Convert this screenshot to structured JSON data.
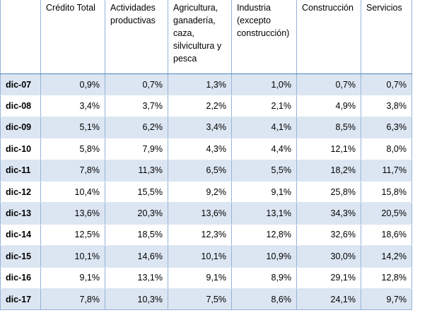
{
  "table": {
    "columns": [
      "Crédito Total",
      "Actividades productivas",
      "Agricultura, ganadería, caza, silvicultura y pesca",
      "Industria (excepto construcción)",
      "Construcción",
      "Servicios"
    ],
    "rows": [
      {
        "label": "dic-07",
        "values": [
          "0,9%",
          "0,7%",
          "1,3%",
          "1,0%",
          "0,7%",
          "0,7%"
        ]
      },
      {
        "label": "dic-08",
        "values": [
          "3,4%",
          "3,7%",
          "2,2%",
          "2,1%",
          "4,9%",
          "3,8%"
        ]
      },
      {
        "label": "dic-09",
        "values": [
          "5,1%",
          "6,2%",
          "3,4%",
          "4,1%",
          "8,5%",
          "6,3%"
        ]
      },
      {
        "label": "dic-10",
        "values": [
          "5,8%",
          "7,9%",
          "4,3%",
          "4,4%",
          "12,1%",
          "8,0%"
        ]
      },
      {
        "label": "dic-11",
        "values": [
          "7,8%",
          "11,3%",
          "6,5%",
          "5,5%",
          "18,2%",
          "11,7%"
        ]
      },
      {
        "label": "dic-12",
        "values": [
          "10,4%",
          "15,5%",
          "9,2%",
          "9,1%",
          "25,8%",
          "15,8%"
        ]
      },
      {
        "label": "dic-13",
        "values": [
          "13,6%",
          "20,3%",
          "13,6%",
          "13,1%",
          "34,3%",
          "20,5%"
        ]
      },
      {
        "label": "dic-14",
        "values": [
          "12,5%",
          "18,5%",
          "12,3%",
          "12,8%",
          "32,6%",
          "18,6%"
        ]
      },
      {
        "label": "dic-15",
        "values": [
          "10,1%",
          "14,6%",
          "10,1%",
          "10,9%",
          "30,0%",
          "14,2%"
        ]
      },
      {
        "label": "dic-16",
        "values": [
          "9,1%",
          "13,1%",
          "9,1%",
          "8,9%",
          "29,1%",
          "12,8%"
        ]
      },
      {
        "label": "dic-17",
        "values": [
          "7,8%",
          "10,3%",
          "7,5%",
          "8,6%",
          "24,1%",
          "9,7%"
        ]
      }
    ]
  }
}
